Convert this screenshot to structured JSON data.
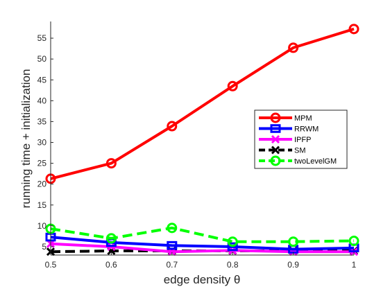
{
  "chart_data": {
    "type": "line",
    "xlabel": "edge density θ",
    "ylabel": "running time + initialization",
    "xlim": [
      0.5,
      1.0
    ],
    "ylim": [
      3,
      59
    ],
    "x": [
      0.5,
      0.6,
      0.7,
      0.8,
      0.9,
      1.0
    ],
    "x_ticks": [
      "0.5",
      "0.6",
      "0.7",
      "0.8",
      "0.9",
      "1"
    ],
    "y_ticks": [
      "5",
      "10",
      "15",
      "20",
      "25",
      "30",
      "35",
      "40",
      "45",
      "50",
      "55"
    ],
    "legend_position": "right-center",
    "series": [
      {
        "name": "MPM",
        "color": "#ff0000",
        "marker": "circle",
        "dash": "solid",
        "values": [
          21.3,
          25.0,
          33.9,
          43.5,
          52.7,
          57.2
        ]
      },
      {
        "name": "RRWM",
        "color": "#0000ff",
        "marker": "square",
        "dash": "solid",
        "values": [
          7.3,
          6.0,
          5.3,
          5.0,
          4.4,
          4.7
        ]
      },
      {
        "name": "IPFP",
        "color": "#ff00ff",
        "marker": "x",
        "dash": "solid",
        "values": [
          5.7,
          5.0,
          3.8,
          4.1,
          3.8,
          3.8
        ]
      },
      {
        "name": "SM",
        "color": "#000000",
        "marker": "x",
        "dash": "dashed",
        "values": [
          3.8,
          4.0,
          4.0,
          4.0,
          4.0,
          4.0
        ]
      },
      {
        "name": "twoLevelGM",
        "color": "#00ff00",
        "marker": "circle",
        "dash": "dashed",
        "values": [
          9.3,
          7.0,
          9.5,
          6.2,
          6.2,
          6.4
        ]
      }
    ]
  }
}
